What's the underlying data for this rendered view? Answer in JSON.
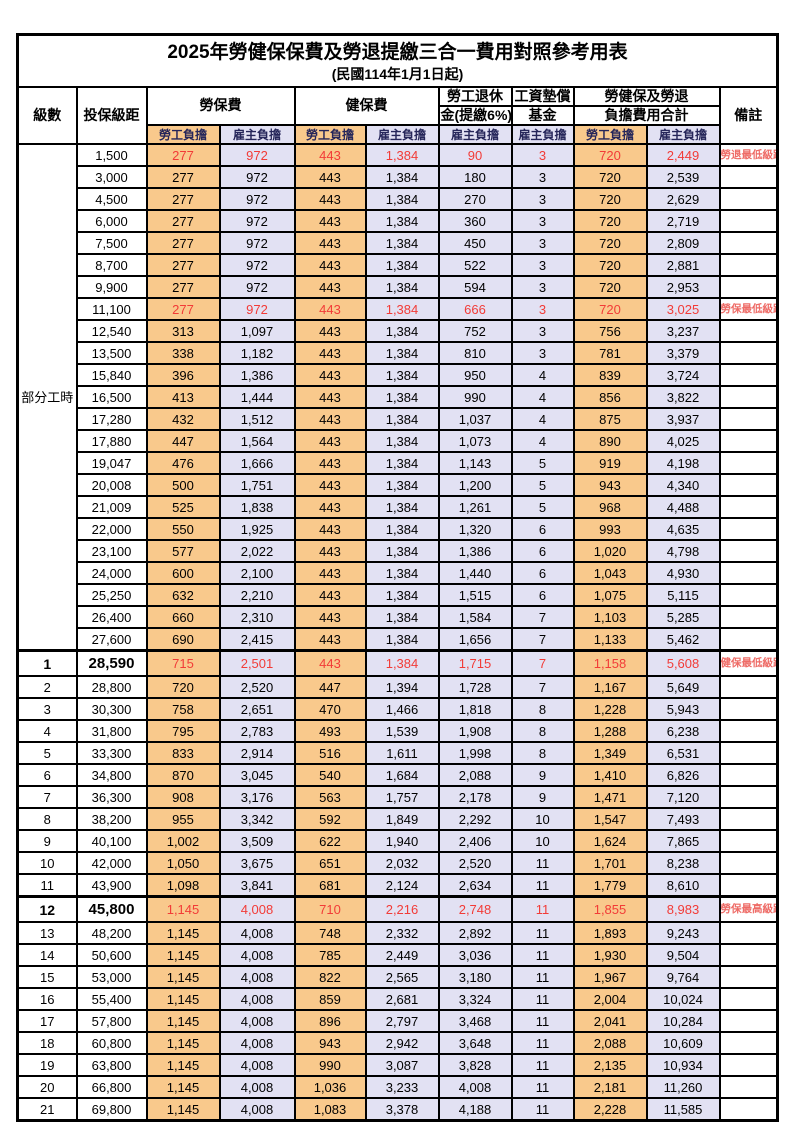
{
  "title": "2025年勞健保保費及勞退提繳三合一費用對照參考用表",
  "subtitle": "(民國114年1月1日起)",
  "header": {
    "level": "級數",
    "bracket": "投保級距",
    "labor": "勞保費",
    "health": "健保費",
    "pension_l1": "勞工退休",
    "pension_l2": "金(提繳6%)",
    "fund_l1": "工資墊償",
    "fund_l2": "基金",
    "total_l1": "勞健保及勞退",
    "total_l2": "負擔費用合計",
    "remark": "備註",
    "employee": "勞工負擔",
    "employer": "雇主負擔"
  },
  "part_time": {
    "label": "部分工時",
    "row_span": 23
  },
  "colors": {
    "employee_bg": "#F9C98C",
    "employer_bg": "#E2E1F3",
    "red_value": "#F23B37",
    "remark_red": "#EE6B66",
    "subheader_text": "#26265A"
  },
  "rows": [
    {
      "level": "",
      "bracket": "1,500",
      "li_emp": "277",
      "li_er": "972",
      "hi_emp": "443",
      "hi_er": "1,384",
      "pension": "90",
      "fund": "3",
      "tot_emp": "720",
      "tot_er": "2,449",
      "remark": "勞退最低級距",
      "red": true,
      "bold": false
    },
    {
      "level": "",
      "bracket": "3,000",
      "li_emp": "277",
      "li_er": "972",
      "hi_emp": "443",
      "hi_er": "1,384",
      "pension": "180",
      "fund": "3",
      "tot_emp": "720",
      "tot_er": "2,539",
      "remark": "",
      "red": false,
      "bold": false
    },
    {
      "level": "",
      "bracket": "4,500",
      "li_emp": "277",
      "li_er": "972",
      "hi_emp": "443",
      "hi_er": "1,384",
      "pension": "270",
      "fund": "3",
      "tot_emp": "720",
      "tot_er": "2,629",
      "remark": "",
      "red": false,
      "bold": false
    },
    {
      "level": "",
      "bracket": "6,000",
      "li_emp": "277",
      "li_er": "972",
      "hi_emp": "443",
      "hi_er": "1,384",
      "pension": "360",
      "fund": "3",
      "tot_emp": "720",
      "tot_er": "2,719",
      "remark": "",
      "red": false,
      "bold": false
    },
    {
      "level": "",
      "bracket": "7,500",
      "li_emp": "277",
      "li_er": "972",
      "hi_emp": "443",
      "hi_er": "1,384",
      "pension": "450",
      "fund": "3",
      "tot_emp": "720",
      "tot_er": "2,809",
      "remark": "",
      "red": false,
      "bold": false
    },
    {
      "level": "",
      "bracket": "8,700",
      "li_emp": "277",
      "li_er": "972",
      "hi_emp": "443",
      "hi_er": "1,384",
      "pension": "522",
      "fund": "3",
      "tot_emp": "720",
      "tot_er": "2,881",
      "remark": "",
      "red": false,
      "bold": false
    },
    {
      "level": "",
      "bracket": "9,900",
      "li_emp": "277",
      "li_er": "972",
      "hi_emp": "443",
      "hi_er": "1,384",
      "pension": "594",
      "fund": "3",
      "tot_emp": "720",
      "tot_er": "2,953",
      "remark": "",
      "red": false,
      "bold": false
    },
    {
      "level": "",
      "bracket": "11,100",
      "li_emp": "277",
      "li_er": "972",
      "hi_emp": "443",
      "hi_er": "1,384",
      "pension": "666",
      "fund": "3",
      "tot_emp": "720",
      "tot_er": "3,025",
      "remark": "勞保最低級距",
      "red": true,
      "bold": false
    },
    {
      "level": "",
      "bracket": "12,540",
      "li_emp": "313",
      "li_er": "1,097",
      "hi_emp": "443",
      "hi_er": "1,384",
      "pension": "752",
      "fund": "3",
      "tot_emp": "756",
      "tot_er": "3,237",
      "remark": "",
      "red": false,
      "bold": false
    },
    {
      "level": "",
      "bracket": "13,500",
      "li_emp": "338",
      "li_er": "1,182",
      "hi_emp": "443",
      "hi_er": "1,384",
      "pension": "810",
      "fund": "3",
      "tot_emp": "781",
      "tot_er": "3,379",
      "remark": "",
      "red": false,
      "bold": false
    },
    {
      "level": "",
      "bracket": "15,840",
      "li_emp": "396",
      "li_er": "1,386",
      "hi_emp": "443",
      "hi_er": "1,384",
      "pension": "950",
      "fund": "4",
      "tot_emp": "839",
      "tot_er": "3,724",
      "remark": "",
      "red": false,
      "bold": false
    },
    {
      "level": "",
      "bracket": "16,500",
      "li_emp": "413",
      "li_er": "1,444",
      "hi_emp": "443",
      "hi_er": "1,384",
      "pension": "990",
      "fund": "4",
      "tot_emp": "856",
      "tot_er": "3,822",
      "remark": "",
      "red": false,
      "bold": false
    },
    {
      "level": "",
      "bracket": "17,280",
      "li_emp": "432",
      "li_er": "1,512",
      "hi_emp": "443",
      "hi_er": "1,384",
      "pension": "1,037",
      "fund": "4",
      "tot_emp": "875",
      "tot_er": "3,937",
      "remark": "",
      "red": false,
      "bold": false
    },
    {
      "level": "",
      "bracket": "17,880",
      "li_emp": "447",
      "li_er": "1,564",
      "hi_emp": "443",
      "hi_er": "1,384",
      "pension": "1,073",
      "fund": "4",
      "tot_emp": "890",
      "tot_er": "4,025",
      "remark": "",
      "red": false,
      "bold": false
    },
    {
      "level": "",
      "bracket": "19,047",
      "li_emp": "476",
      "li_er": "1,666",
      "hi_emp": "443",
      "hi_er": "1,384",
      "pension": "1,143",
      "fund": "5",
      "tot_emp": "919",
      "tot_er": "4,198",
      "remark": "",
      "red": false,
      "bold": false
    },
    {
      "level": "",
      "bracket": "20,008",
      "li_emp": "500",
      "li_er": "1,751",
      "hi_emp": "443",
      "hi_er": "1,384",
      "pension": "1,200",
      "fund": "5",
      "tot_emp": "943",
      "tot_er": "4,340",
      "remark": "",
      "red": false,
      "bold": false
    },
    {
      "level": "",
      "bracket": "21,009",
      "li_emp": "525",
      "li_er": "1,838",
      "hi_emp": "443",
      "hi_er": "1,384",
      "pension": "1,261",
      "fund": "5",
      "tot_emp": "968",
      "tot_er": "4,488",
      "remark": "",
      "red": false,
      "bold": false
    },
    {
      "level": "",
      "bracket": "22,000",
      "li_emp": "550",
      "li_er": "1,925",
      "hi_emp": "443",
      "hi_er": "1,384",
      "pension": "1,320",
      "fund": "6",
      "tot_emp": "993",
      "tot_er": "4,635",
      "remark": "",
      "red": false,
      "bold": false
    },
    {
      "level": "",
      "bracket": "23,100",
      "li_emp": "577",
      "li_er": "2,022",
      "hi_emp": "443",
      "hi_er": "1,384",
      "pension": "1,386",
      "fund": "6",
      "tot_emp": "1,020",
      "tot_er": "4,798",
      "remark": "",
      "red": false,
      "bold": false
    },
    {
      "level": "",
      "bracket": "24,000",
      "li_emp": "600",
      "li_er": "2,100",
      "hi_emp": "443",
      "hi_er": "1,384",
      "pension": "1,440",
      "fund": "6",
      "tot_emp": "1,043",
      "tot_er": "4,930",
      "remark": "",
      "red": false,
      "bold": false
    },
    {
      "level": "",
      "bracket": "25,250",
      "li_emp": "632",
      "li_er": "2,210",
      "hi_emp": "443",
      "hi_er": "1,384",
      "pension": "1,515",
      "fund": "6",
      "tot_emp": "1,075",
      "tot_er": "5,115",
      "remark": "",
      "red": false,
      "bold": false
    },
    {
      "level": "",
      "bracket": "26,400",
      "li_emp": "660",
      "li_er": "2,310",
      "hi_emp": "443",
      "hi_er": "1,384",
      "pension": "1,584",
      "fund": "7",
      "tot_emp": "1,103",
      "tot_er": "5,285",
      "remark": "",
      "red": false,
      "bold": false
    },
    {
      "level": "",
      "bracket": "27,600",
      "li_emp": "690",
      "li_er": "2,415",
      "hi_emp": "443",
      "hi_er": "1,384",
      "pension": "1,656",
      "fund": "7",
      "tot_emp": "1,133",
      "tot_er": "5,462",
      "remark": "",
      "red": false,
      "bold": false
    },
    {
      "level": "1",
      "bracket": "28,590",
      "li_emp": "715",
      "li_er": "2,501",
      "hi_emp": "443",
      "hi_er": "1,384",
      "pension": "1,715",
      "fund": "7",
      "tot_emp": "1,158",
      "tot_er": "5,608",
      "remark": "健保最低級距",
      "red": true,
      "bold": true
    },
    {
      "level": "2",
      "bracket": "28,800",
      "li_emp": "720",
      "li_er": "2,520",
      "hi_emp": "447",
      "hi_er": "1,394",
      "pension": "1,728",
      "fund": "7",
      "tot_emp": "1,167",
      "tot_er": "5,649",
      "remark": "",
      "red": false,
      "bold": false
    },
    {
      "level": "3",
      "bracket": "30,300",
      "li_emp": "758",
      "li_er": "2,651",
      "hi_emp": "470",
      "hi_er": "1,466",
      "pension": "1,818",
      "fund": "8",
      "tot_emp": "1,228",
      "tot_er": "5,943",
      "remark": "",
      "red": false,
      "bold": false
    },
    {
      "level": "4",
      "bracket": "31,800",
      "li_emp": "795",
      "li_er": "2,783",
      "hi_emp": "493",
      "hi_er": "1,539",
      "pension": "1,908",
      "fund": "8",
      "tot_emp": "1,288",
      "tot_er": "6,238",
      "remark": "",
      "red": false,
      "bold": false
    },
    {
      "level": "5",
      "bracket": "33,300",
      "li_emp": "833",
      "li_er": "2,914",
      "hi_emp": "516",
      "hi_er": "1,611",
      "pension": "1,998",
      "fund": "8",
      "tot_emp": "1,349",
      "tot_er": "6,531",
      "remark": "",
      "red": false,
      "bold": false
    },
    {
      "level": "6",
      "bracket": "34,800",
      "li_emp": "870",
      "li_er": "3,045",
      "hi_emp": "540",
      "hi_er": "1,684",
      "pension": "2,088",
      "fund": "9",
      "tot_emp": "1,410",
      "tot_er": "6,826",
      "remark": "",
      "red": false,
      "bold": false
    },
    {
      "level": "7",
      "bracket": "36,300",
      "li_emp": "908",
      "li_er": "3,176",
      "hi_emp": "563",
      "hi_er": "1,757",
      "pension": "2,178",
      "fund": "9",
      "tot_emp": "1,471",
      "tot_er": "7,120",
      "remark": "",
      "red": false,
      "bold": false
    },
    {
      "level": "8",
      "bracket": "38,200",
      "li_emp": "955",
      "li_er": "3,342",
      "hi_emp": "592",
      "hi_er": "1,849",
      "pension": "2,292",
      "fund": "10",
      "tot_emp": "1,547",
      "tot_er": "7,493",
      "remark": "",
      "red": false,
      "bold": false
    },
    {
      "level": "9",
      "bracket": "40,100",
      "li_emp": "1,002",
      "li_er": "3,509",
      "hi_emp": "622",
      "hi_er": "1,940",
      "pension": "2,406",
      "fund": "10",
      "tot_emp": "1,624",
      "tot_er": "7,865",
      "remark": "",
      "red": false,
      "bold": false
    },
    {
      "level": "10",
      "bracket": "42,000",
      "li_emp": "1,050",
      "li_er": "3,675",
      "hi_emp": "651",
      "hi_er": "2,032",
      "pension": "2,520",
      "fund": "11",
      "tot_emp": "1,701",
      "tot_er": "8,238",
      "remark": "",
      "red": false,
      "bold": false
    },
    {
      "level": "11",
      "bracket": "43,900",
      "li_emp": "1,098",
      "li_er": "3,841",
      "hi_emp": "681",
      "hi_er": "2,124",
      "pension": "2,634",
      "fund": "11",
      "tot_emp": "1,779",
      "tot_er": "8,610",
      "remark": "",
      "red": false,
      "bold": false
    },
    {
      "level": "12",
      "bracket": "45,800",
      "li_emp": "1,145",
      "li_er": "4,008",
      "hi_emp": "710",
      "hi_er": "2,216",
      "pension": "2,748",
      "fund": "11",
      "tot_emp": "1,855",
      "tot_er": "8,983",
      "remark": "勞保最高級距",
      "red": true,
      "bold": true
    },
    {
      "level": "13",
      "bracket": "48,200",
      "li_emp": "1,145",
      "li_er": "4,008",
      "hi_emp": "748",
      "hi_er": "2,332",
      "pension": "2,892",
      "fund": "11",
      "tot_emp": "1,893",
      "tot_er": "9,243",
      "remark": "",
      "red": false,
      "bold": false
    },
    {
      "level": "14",
      "bracket": "50,600",
      "li_emp": "1,145",
      "li_er": "4,008",
      "hi_emp": "785",
      "hi_er": "2,449",
      "pension": "3,036",
      "fund": "11",
      "tot_emp": "1,930",
      "tot_er": "9,504",
      "remark": "",
      "red": false,
      "bold": false
    },
    {
      "level": "15",
      "bracket": "53,000",
      "li_emp": "1,145",
      "li_er": "4,008",
      "hi_emp": "822",
      "hi_er": "2,565",
      "pension": "3,180",
      "fund": "11",
      "tot_emp": "1,967",
      "tot_er": "9,764",
      "remark": "",
      "red": false,
      "bold": false
    },
    {
      "level": "16",
      "bracket": "55,400",
      "li_emp": "1,145",
      "li_er": "4,008",
      "hi_emp": "859",
      "hi_er": "2,681",
      "pension": "3,324",
      "fund": "11",
      "tot_emp": "2,004",
      "tot_er": "10,024",
      "remark": "",
      "red": false,
      "bold": false
    },
    {
      "level": "17",
      "bracket": "57,800",
      "li_emp": "1,145",
      "li_er": "4,008",
      "hi_emp": "896",
      "hi_er": "2,797",
      "pension": "3,468",
      "fund": "11",
      "tot_emp": "2,041",
      "tot_er": "10,284",
      "remark": "",
      "red": false,
      "bold": false
    },
    {
      "level": "18",
      "bracket": "60,800",
      "li_emp": "1,145",
      "li_er": "4,008",
      "hi_emp": "943",
      "hi_er": "2,942",
      "pension": "3,648",
      "fund": "11",
      "tot_emp": "2,088",
      "tot_er": "10,609",
      "remark": "",
      "red": false,
      "bold": false
    },
    {
      "level": "19",
      "bracket": "63,800",
      "li_emp": "1,145",
      "li_er": "4,008",
      "hi_emp": "990",
      "hi_er": "3,087",
      "pension": "3,828",
      "fund": "11",
      "tot_emp": "2,135",
      "tot_er": "10,934",
      "remark": "",
      "red": false,
      "bold": false
    },
    {
      "level": "20",
      "bracket": "66,800",
      "li_emp": "1,145",
      "li_er": "4,008",
      "hi_emp": "1,036",
      "hi_er": "3,233",
      "pension": "4,008",
      "fund": "11",
      "tot_emp": "2,181",
      "tot_er": "11,260",
      "remark": "",
      "red": false,
      "bold": false
    },
    {
      "level": "21",
      "bracket": "69,800",
      "li_emp": "1,145",
      "li_er": "4,008",
      "hi_emp": "1,083",
      "hi_er": "3,378",
      "pension": "4,188",
      "fund": "11",
      "tot_emp": "2,228",
      "tot_er": "11,585",
      "remark": "",
      "red": false,
      "bold": false
    }
  ]
}
